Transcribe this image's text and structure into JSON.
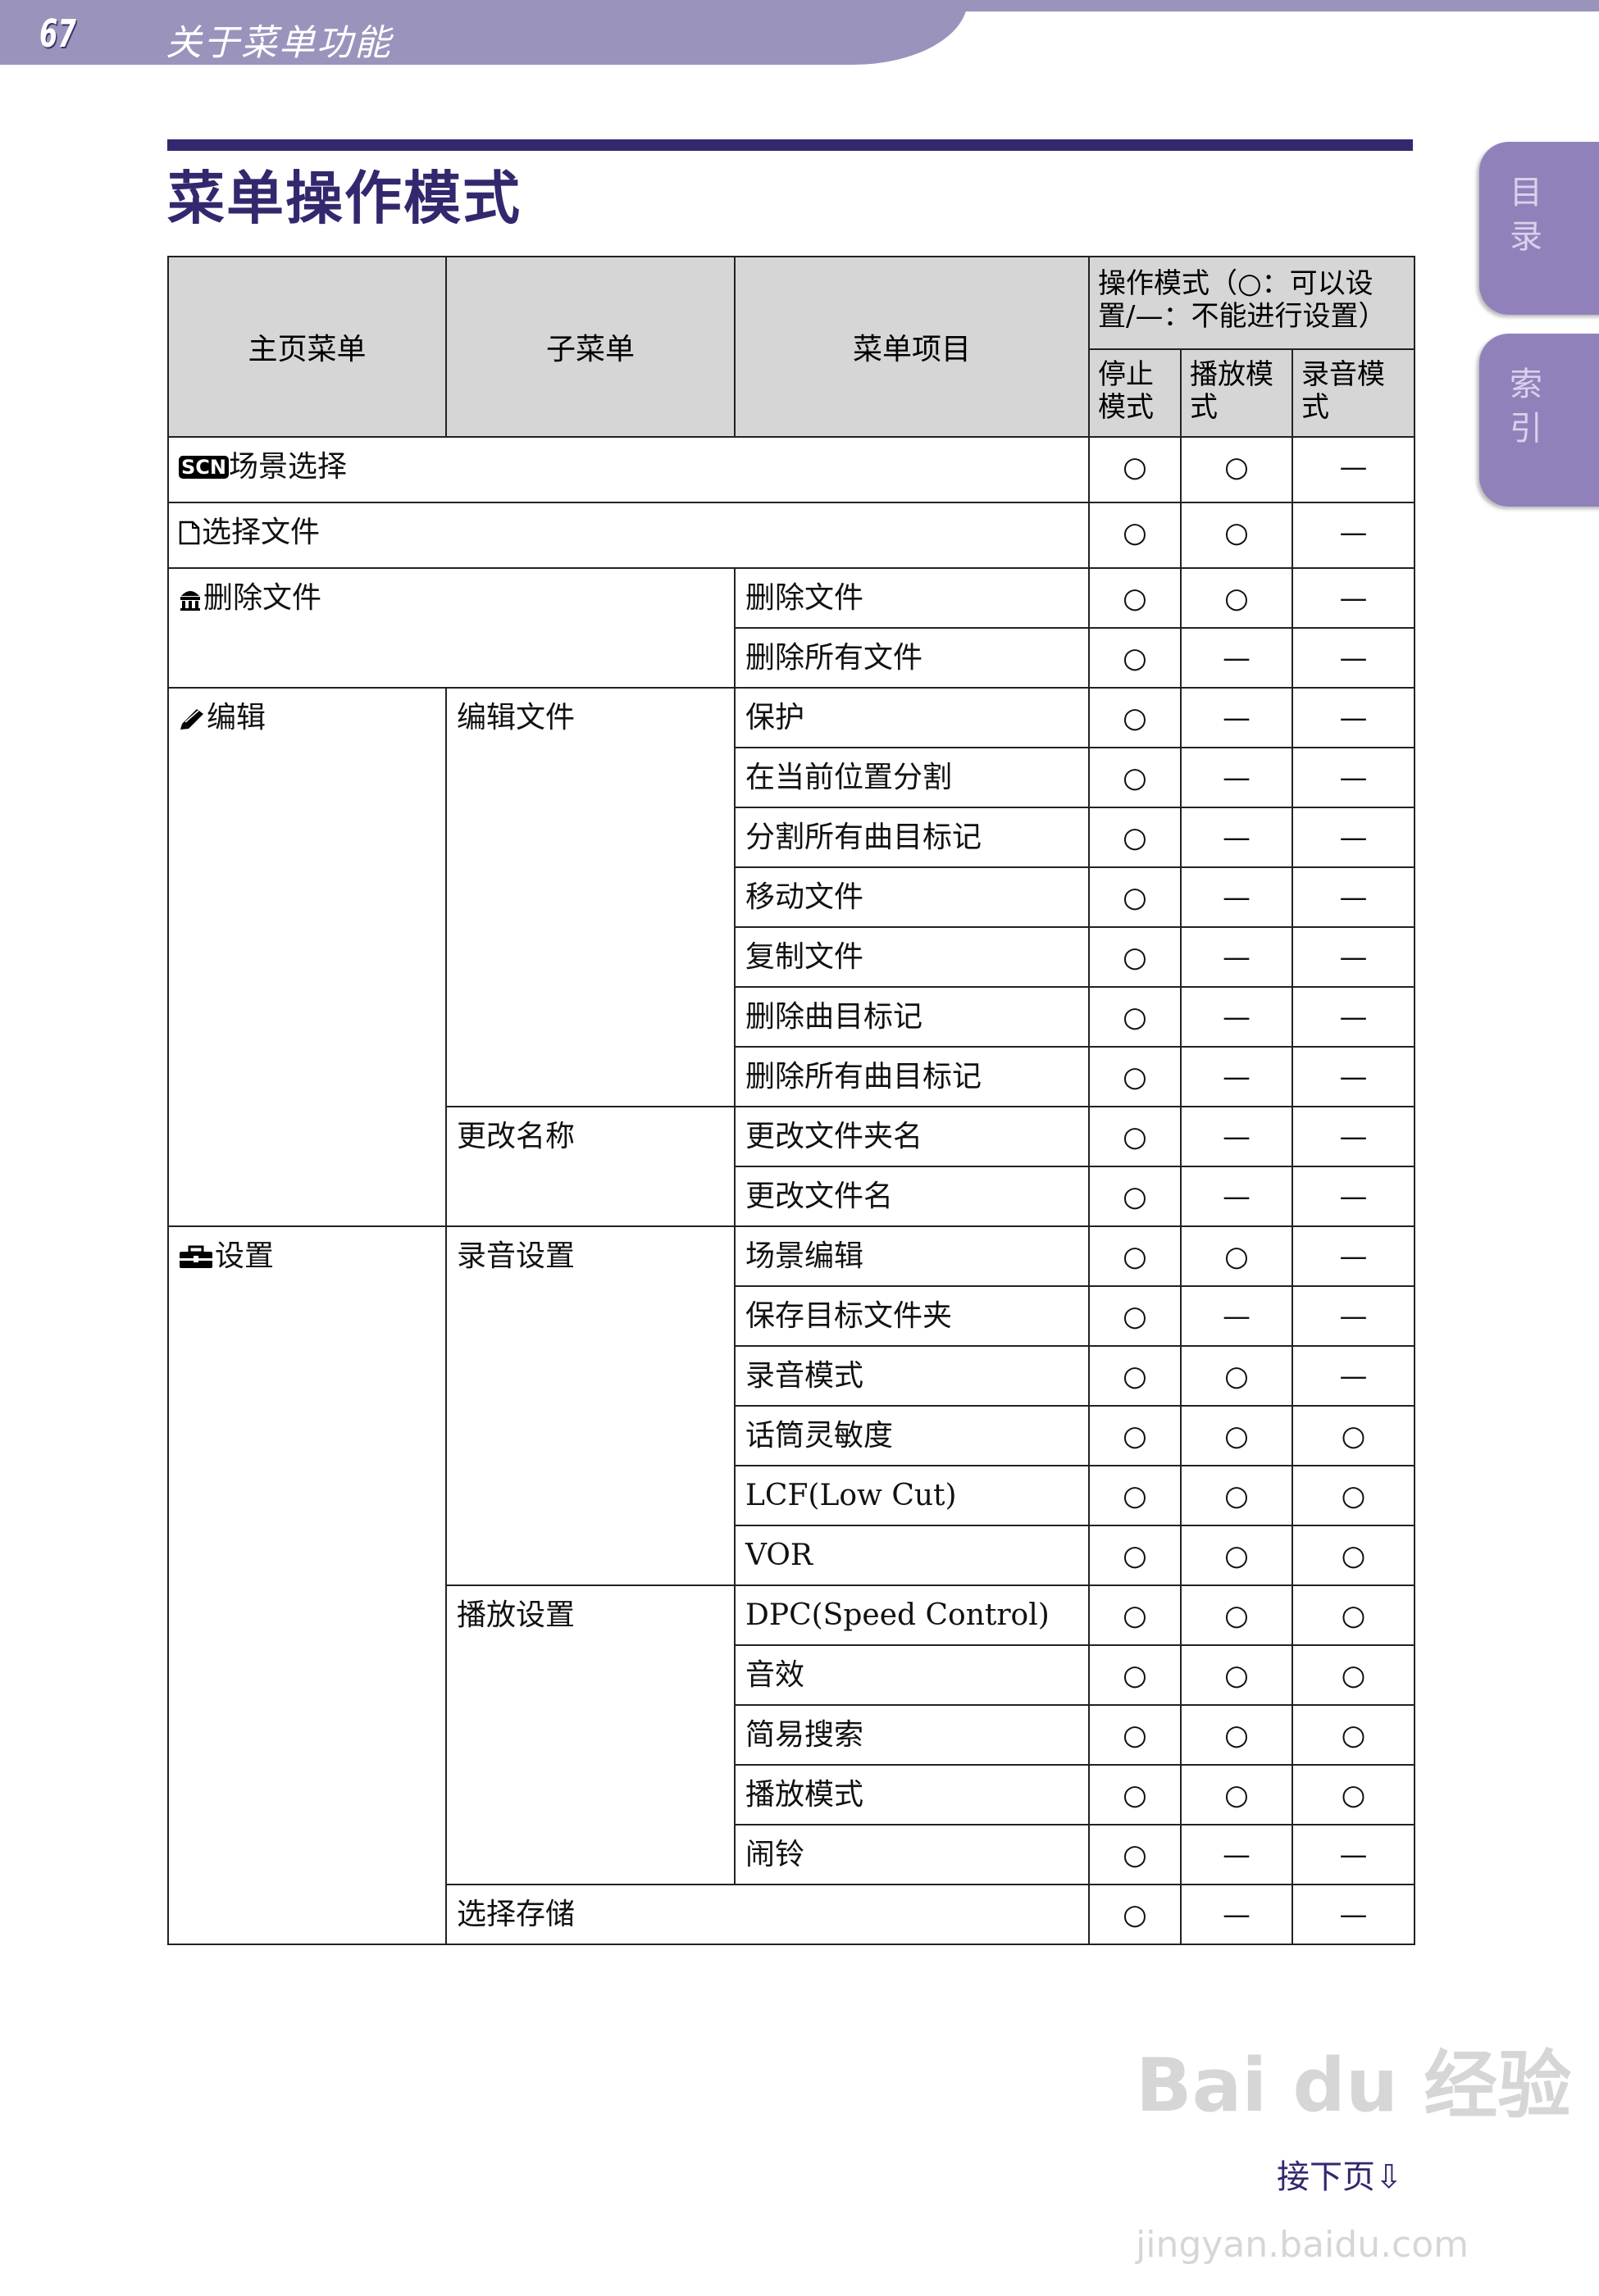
{
  "header": {
    "page_number": "67",
    "section": "关于菜单功能"
  },
  "title": "菜单操作模式",
  "side_tabs": [
    {
      "label": "目录"
    },
    {
      "label": "索引"
    }
  ],
  "colors": {
    "header_bar": "#9a93bc",
    "accent": "#33286e",
    "tab": "#9181bb",
    "table_header": "#d6d6d6"
  },
  "table": {
    "headers": {
      "main": "主页菜单",
      "sub": "子菜单",
      "item": "菜单项目",
      "modes": "操作模式（○：可以设置/—：不能进行设置）",
      "stop": "停止模式",
      "play": "播放模式",
      "rec": "录音模式"
    },
    "rows": [
      {
        "main": "场景选择",
        "icon": "scn",
        "icon_text": "SCN",
        "span": 3,
        "modes": [
          "○",
          "○",
          "—"
        ]
      },
      {
        "main": "选择文件",
        "icon": "file",
        "span": 3,
        "modes": [
          "○",
          "○",
          "—"
        ]
      },
      {
        "main": "删除文件",
        "icon": "trash",
        "main_span": 2,
        "main_rows": 2,
        "item": "删除文件",
        "modes": [
          "○",
          "○",
          "—"
        ]
      },
      {
        "item": "删除所有文件",
        "modes": [
          "○",
          "—",
          "—"
        ]
      },
      {
        "main": "编辑",
        "icon": "pencil",
        "main_rows": 9,
        "sub": "编辑文件",
        "sub_rows": 7,
        "item": "保护",
        "modes": [
          "○",
          "—",
          "—"
        ]
      },
      {
        "item": "在当前位置分割",
        "modes": [
          "○",
          "—",
          "—"
        ]
      },
      {
        "item": "分割所有曲目标记",
        "modes": [
          "○",
          "—",
          "—"
        ]
      },
      {
        "item": "移动文件",
        "modes": [
          "○",
          "—",
          "—"
        ]
      },
      {
        "item": "复制文件",
        "modes": [
          "○",
          "—",
          "—"
        ]
      },
      {
        "item": "删除曲目标记",
        "modes": [
          "○",
          "—",
          "—"
        ]
      },
      {
        "item": "删除所有曲目标记",
        "modes": [
          "○",
          "—",
          "—"
        ]
      },
      {
        "sub": "更改名称",
        "sub_rows": 2,
        "item": "更改文件夹名",
        "modes": [
          "○",
          "—",
          "—"
        ]
      },
      {
        "item": "更改文件名",
        "modes": [
          "○",
          "—",
          "—"
        ]
      },
      {
        "main": "设置",
        "icon": "toolbox",
        "main_rows": 12,
        "sub": "录音设置",
        "sub_rows": 6,
        "item": "场景编辑",
        "modes": [
          "○",
          "○",
          "—"
        ]
      },
      {
        "item": "保存目标文件夹",
        "modes": [
          "○",
          "—",
          "—"
        ]
      },
      {
        "item": "录音模式",
        "modes": [
          "○",
          "○",
          "—"
        ]
      },
      {
        "item": "话筒灵敏度",
        "modes": [
          "○",
          "○",
          "○"
        ]
      },
      {
        "item": "LCF(Low Cut)",
        "modes": [
          "○",
          "○",
          "○"
        ]
      },
      {
        "item": "VOR",
        "modes": [
          "○",
          "○",
          "○"
        ]
      },
      {
        "sub": "播放设置",
        "sub_rows": 5,
        "item": "DPC(Speed Control)",
        "modes": [
          "○",
          "○",
          "○"
        ]
      },
      {
        "item": "音效",
        "modes": [
          "○",
          "○",
          "○"
        ]
      },
      {
        "item": "简易搜索",
        "modes": [
          "○",
          "○",
          "○"
        ]
      },
      {
        "item": "播放模式",
        "modes": [
          "○",
          "○",
          "○"
        ]
      },
      {
        "item": "闹铃",
        "modes": [
          "○",
          "—",
          "—"
        ]
      },
      {
        "sub": "选择存储",
        "sub_span": 2,
        "modes": [
          "○",
          "—",
          "—"
        ]
      }
    ]
  },
  "footer": {
    "next_page": "接下页⇩"
  },
  "watermark": {
    "line1": "Bai du 经验",
    "line2": "jingyan.baidu.com"
  }
}
